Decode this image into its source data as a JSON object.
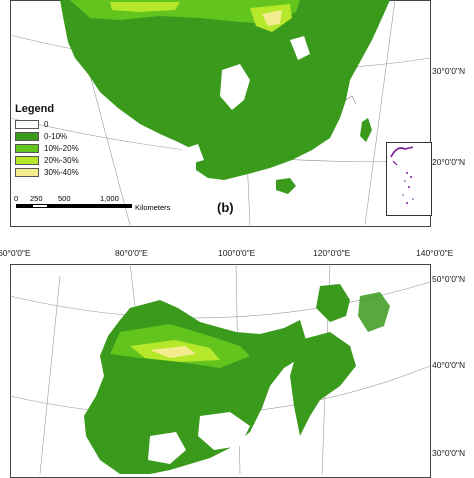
{
  "colors": {
    "class_0": "#ffffff",
    "class_0_10": "#3a9a1c",
    "class_10_20": "#62c41d",
    "class_20_30": "#b5e82a",
    "class_30_40": "#f2ec8f",
    "border": "#7b1e9a"
  },
  "panel_b": {
    "label": "(b)",
    "legend_title": "Legend",
    "legend": [
      {
        "label": "0",
        "color": "#ffffff"
      },
      {
        "label": "0-10%",
        "color": "#3a9a1c"
      },
      {
        "label": "10%-20%",
        "color": "#62c41d"
      },
      {
        "label": "20%-30%",
        "color": "#b5e82a"
      },
      {
        "label": "30%-40%",
        "color": "#f2ec8f"
      }
    ],
    "scalebar": {
      "ticks": [
        "0",
        "250",
        "500",
        "1,000"
      ],
      "unit": "Kilometers"
    },
    "lat_labels": [
      "30°0'0\"N",
      "20°0'0\"N"
    ]
  },
  "panel_c": {
    "lon_labels": [
      "60°0'0\"E",
      "80°0'0\"E",
      "100°0'0\"E",
      "120°0'0\"E",
      "140°0'0\"E"
    ],
    "lat_labels": [
      "50°0'0\"N",
      "40°0'0\"N",
      "30°0'0\"N"
    ]
  }
}
